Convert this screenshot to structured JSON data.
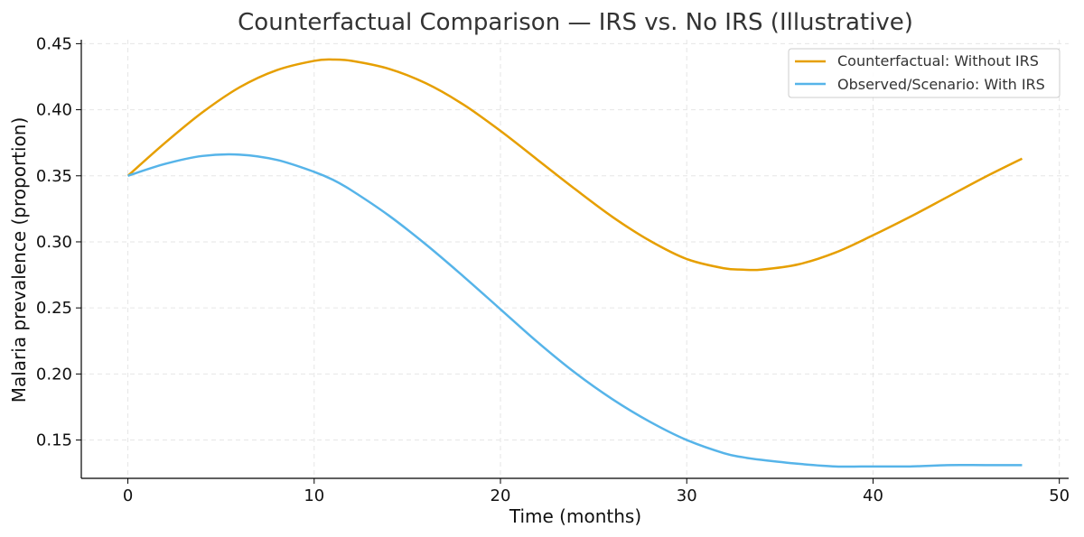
{
  "chart_data": {
    "type": "line",
    "title": "Counterfactual Comparison — IRS vs. No IRS (Illustrative)",
    "xlabel": "Time (months)",
    "ylabel": "Malaria prevalence (proportion)",
    "xlim": [
      -2.5,
      50.5
    ],
    "ylim": [
      0.121,
      0.453
    ],
    "xticks": [
      0,
      10,
      20,
      30,
      40,
      50
    ],
    "xtick_labels": [
      "0",
      "10",
      "20",
      "30",
      "40",
      "50"
    ],
    "yticks": [
      0.15,
      0.2,
      0.25,
      0.3,
      0.35,
      0.4,
      0.45
    ],
    "ytick_labels": [
      "0.15",
      "0.20",
      "0.25",
      "0.30",
      "0.35",
      "0.40",
      "0.45"
    ],
    "grid": true,
    "legend_position": "top-right",
    "x": [
      0,
      2,
      4,
      6,
      8,
      10,
      11,
      12,
      14,
      16,
      18,
      20,
      22,
      24,
      26,
      28,
      30,
      32,
      33,
      34,
      36,
      38,
      40,
      42,
      44,
      46,
      48
    ],
    "series": [
      {
        "name": "Counterfactual: Without IRS",
        "color": "#E69F00",
        "values": [
          0.35,
          0.375,
          0.398,
          0.417,
          0.43,
          0.437,
          0.438,
          0.437,
          0.431,
          0.42,
          0.404,
          0.384,
          0.362,
          0.34,
          0.319,
          0.301,
          0.287,
          0.28,
          0.279,
          0.279,
          0.283,
          0.292,
          0.305,
          0.319,
          0.334,
          0.349,
          0.363
        ]
      },
      {
        "name": "Observed/Scenario: With IRS",
        "color": "#56B4E9",
        "values": [
          0.35,
          0.359,
          0.365,
          0.366,
          0.362,
          0.353,
          0.347,
          0.339,
          0.32,
          0.298,
          0.274,
          0.249,
          0.224,
          0.201,
          0.181,
          0.164,
          0.15,
          0.14,
          0.137,
          0.135,
          0.132,
          0.13,
          0.13,
          0.13,
          0.131,
          0.131,
          0.131
        ]
      }
    ]
  }
}
